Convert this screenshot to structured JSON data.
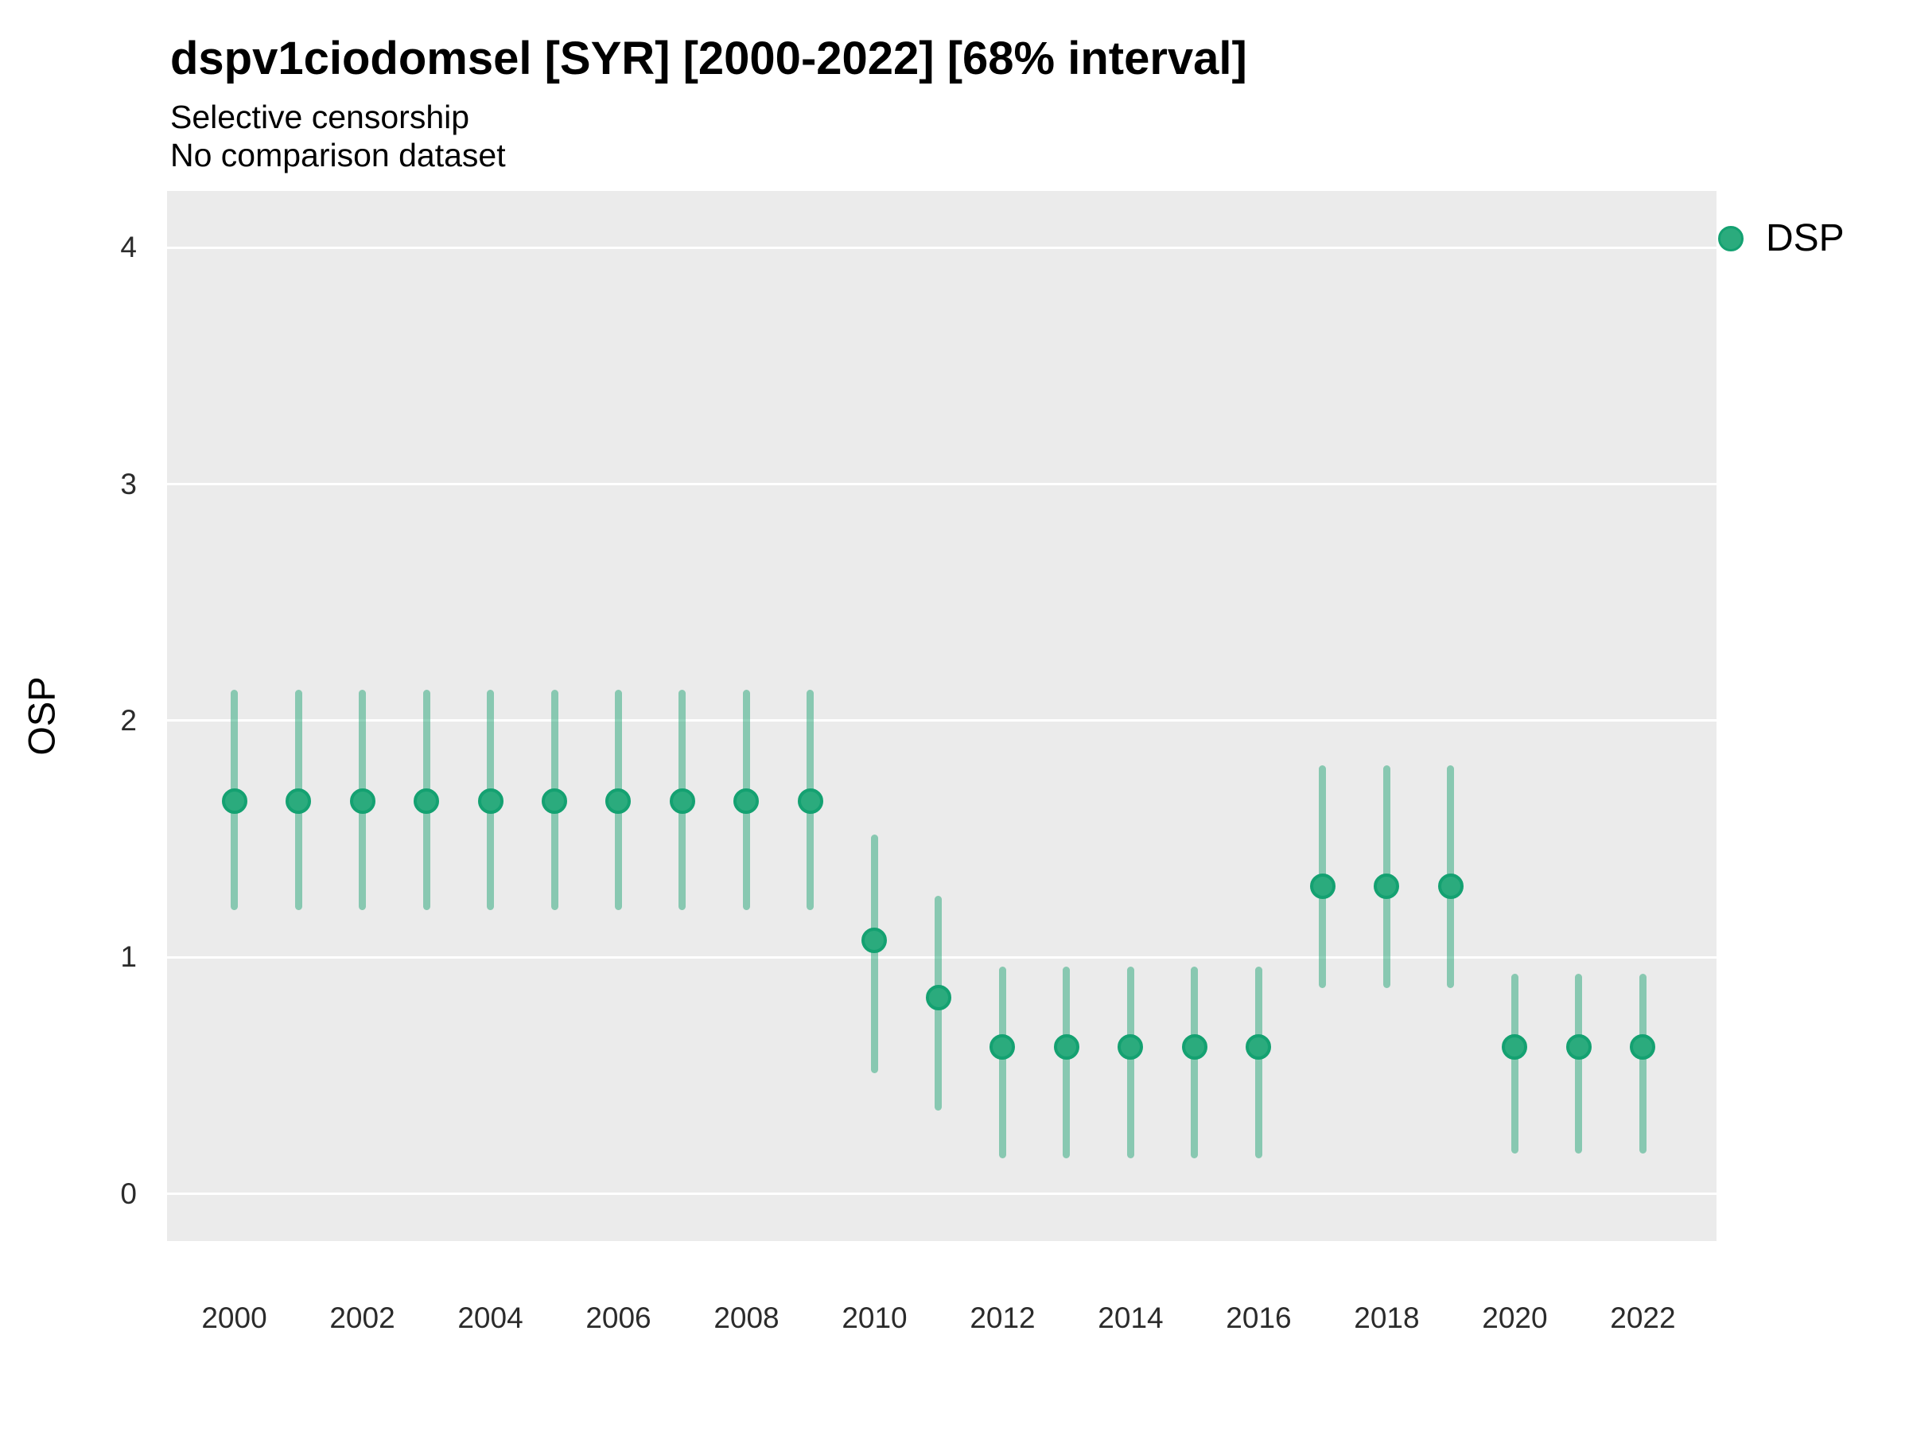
{
  "chart_data": {
    "type": "scatter",
    "title": "dspv1ciodomsel [SYR] [2000-2022] [68% interval]",
    "subtitle": "Selective censorship",
    "subtitle2": "No comparison dataset",
    "xlabel": "",
    "ylabel": "OSP",
    "xlim": [
      1998.95,
      2023.15
    ],
    "ylim": [
      -0.2,
      4.24
    ],
    "y_gridlines": [
      0,
      1,
      2,
      3,
      4
    ],
    "y_tick_labels": [
      "0",
      "1",
      "2",
      "3",
      "4"
    ],
    "x_ticks": [
      2000,
      2002,
      2004,
      2006,
      2008,
      2010,
      2012,
      2014,
      2016,
      2018,
      2020,
      2022
    ],
    "grid": "major-horizontal-only",
    "legend_position": "right-top",
    "interval_level": "68%",
    "series": [
      {
        "name": "DSP",
        "marker_fill": "#2bab7d",
        "marker_edge": "#14a171",
        "interval_color": "rgba(38, 166, 120, 0.5)",
        "points": [
          {
            "x": 2000,
            "y": 1.66,
            "lo": 1.2,
            "hi": 2.13
          },
          {
            "x": 2001,
            "y": 1.66,
            "lo": 1.2,
            "hi": 2.13
          },
          {
            "x": 2002,
            "y": 1.66,
            "lo": 1.2,
            "hi": 2.13
          },
          {
            "x": 2003,
            "y": 1.66,
            "lo": 1.2,
            "hi": 2.13
          },
          {
            "x": 2004,
            "y": 1.66,
            "lo": 1.2,
            "hi": 2.13
          },
          {
            "x": 2005,
            "y": 1.66,
            "lo": 1.2,
            "hi": 2.13
          },
          {
            "x": 2006,
            "y": 1.66,
            "lo": 1.2,
            "hi": 2.13
          },
          {
            "x": 2007,
            "y": 1.66,
            "lo": 1.2,
            "hi": 2.13
          },
          {
            "x": 2008,
            "y": 1.66,
            "lo": 1.2,
            "hi": 2.13
          },
          {
            "x": 2009,
            "y": 1.66,
            "lo": 1.2,
            "hi": 2.13
          },
          {
            "x": 2010,
            "y": 1.07,
            "lo": 0.51,
            "hi": 1.52
          },
          {
            "x": 2011,
            "y": 0.83,
            "lo": 0.35,
            "hi": 1.26
          },
          {
            "x": 2012,
            "y": 0.62,
            "lo": 0.15,
            "hi": 0.96
          },
          {
            "x": 2013,
            "y": 0.62,
            "lo": 0.15,
            "hi": 0.96
          },
          {
            "x": 2014,
            "y": 0.62,
            "lo": 0.15,
            "hi": 0.96
          },
          {
            "x": 2015,
            "y": 0.62,
            "lo": 0.15,
            "hi": 0.96
          },
          {
            "x": 2016,
            "y": 0.62,
            "lo": 0.15,
            "hi": 0.96
          },
          {
            "x": 2017,
            "y": 1.3,
            "lo": 0.87,
            "hi": 1.81
          },
          {
            "x": 2018,
            "y": 1.3,
            "lo": 0.87,
            "hi": 1.81
          },
          {
            "x": 2019,
            "y": 1.3,
            "lo": 0.87,
            "hi": 1.81
          },
          {
            "x": 2020,
            "y": 0.62,
            "lo": 0.17,
            "hi": 0.93
          },
          {
            "x": 2021,
            "y": 0.62,
            "lo": 0.17,
            "hi": 0.93
          },
          {
            "x": 2022,
            "y": 0.62,
            "lo": 0.17,
            "hi": 0.93
          }
        ]
      }
    ],
    "colors": {
      "panel_background": "#ebebeb",
      "gridline": "#ffffff",
      "figure_background": "#ffffff",
      "text": "#000000",
      "tick_text": "#2b2b2b"
    }
  }
}
